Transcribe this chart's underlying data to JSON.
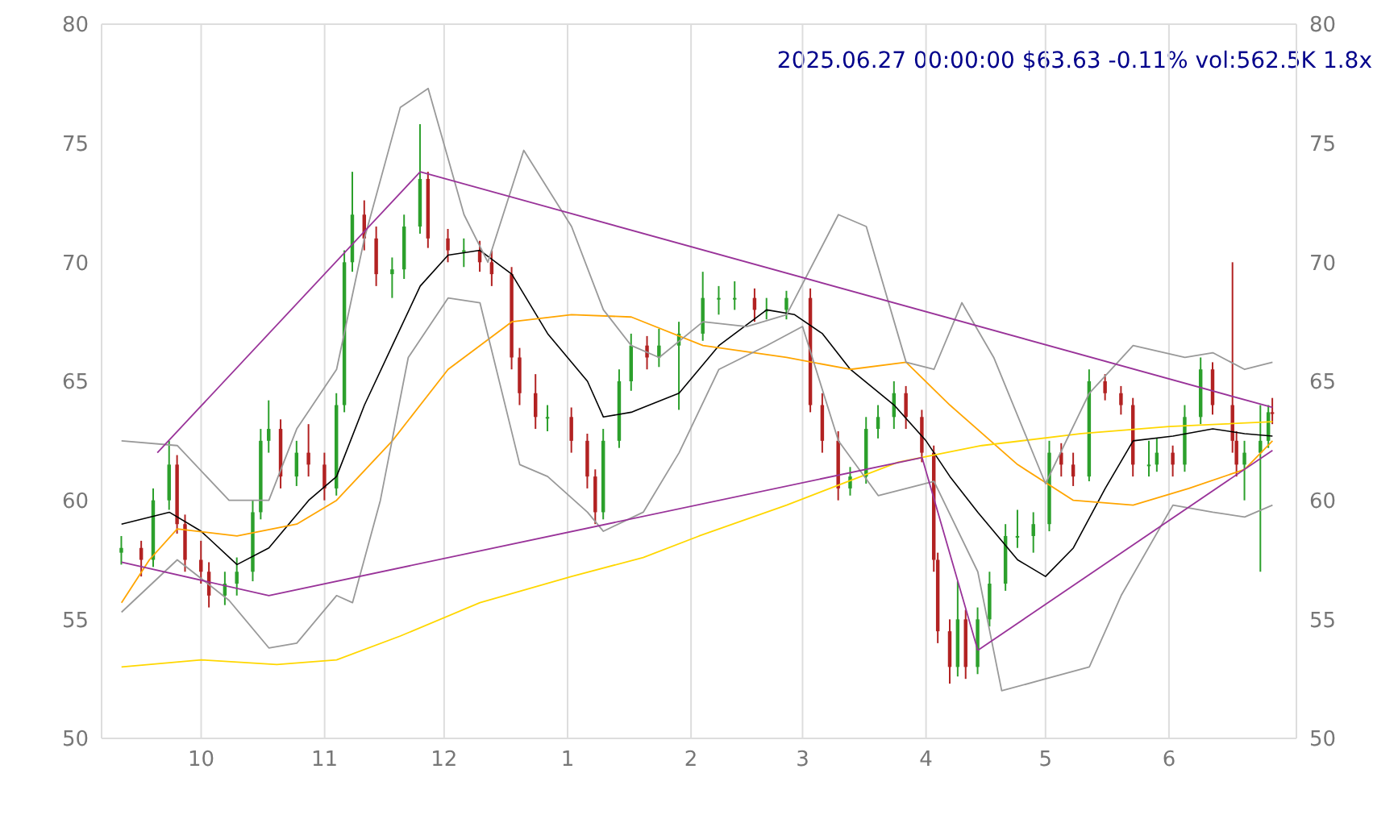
{
  "chart_data": {
    "type": "candlestick",
    "title": "2025.06.27 00:00:00 $63.63 -0.11% vol:562.5K 1.8x",
    "x": [
      "2024-09-11",
      "2024-09-16",
      "2024-09-19",
      "2024-09-23",
      "2024-09-25",
      "2024-09-27",
      "2024-10-01",
      "2024-10-03",
      "2024-10-07",
      "2024-10-10",
      "2024-10-14",
      "2024-10-16",
      "2024-10-18",
      "2024-10-21",
      "2024-10-25",
      "2024-10-28",
      "2024-11-01",
      "2024-11-04",
      "2024-11-06",
      "2024-11-08",
      "2024-11-11",
      "2024-11-14",
      "2024-11-18",
      "2024-11-21",
      "2024-11-25",
      "2024-11-27",
      "2024-12-02",
      "2024-12-06",
      "2024-12-10",
      "2024-12-13",
      "2024-12-18",
      "2024-12-20",
      "2024-12-24",
      "2024-12-27",
      "2025-01-02",
      "2025-01-06",
      "2025-01-08",
      "2025-01-10",
      "2025-01-14",
      "2025-01-17",
      "2025-01-21",
      "2025-01-24",
      "2025-01-29",
      "2025-02-04",
      "2025-02-08",
      "2025-02-12",
      "2025-02-17",
      "2025-02-20",
      "2025-02-25",
      "2025-03-03",
      "2025-03-06",
      "2025-03-10",
      "2025-03-13",
      "2025-03-17",
      "2025-03-20",
      "2025-03-24",
      "2025-03-27",
      "2025-03-31",
      "2025-04-03",
      "2025-04-04",
      "2025-04-07",
      "2025-04-09",
      "2025-04-11",
      "2025-04-14",
      "2025-04-17",
      "2025-04-21",
      "2025-04-24",
      "2025-04-28",
      "2025-05-02",
      "2025-05-05",
      "2025-05-08",
      "2025-05-12",
      "2025-05-16",
      "2025-05-20",
      "2025-05-23",
      "2025-05-27",
      "2025-05-29",
      "2025-06-02",
      "2025-06-05",
      "2025-06-09",
      "2025-06-12",
      "2025-06-17",
      "2025-06-18",
      "2025-06-20",
      "2025-06-24",
      "2025-06-26",
      "2025-06-27"
    ],
    "ohlc": [
      [
        57.8,
        58.5,
        57.3,
        58
      ],
      [
        58,
        58.3,
        56.8,
        57.5
      ],
      [
        57.5,
        60.5,
        57.2,
        60
      ],
      [
        60,
        62.5,
        59.6,
        61.5
      ],
      [
        61.5,
        61.9,
        58.6,
        59
      ],
      [
        59,
        59.4,
        57,
        57.5
      ],
      [
        57.5,
        58.3,
        56.5,
        57
      ],
      [
        57,
        57.4,
        55.5,
        56
      ],
      [
        56,
        57,
        55.6,
        56.5
      ],
      [
        56.5,
        57.6,
        56,
        57
      ],
      [
        57,
        60,
        56.6,
        59.5
      ],
      [
        59.5,
        63,
        59.2,
        62.5
      ],
      [
        62.5,
        64.2,
        62,
        63
      ],
      [
        63,
        63.4,
        60.5,
        61
      ],
      [
        61,
        62.5,
        60.6,
        62
      ],
      [
        62,
        63.2,
        61,
        61.5
      ],
      [
        61.5,
        62,
        60,
        60.5
      ],
      [
        60.5,
        64.5,
        60.2,
        64
      ],
      [
        64,
        70.5,
        63.7,
        70
      ],
      [
        70,
        73.8,
        69.6,
        72
      ],
      [
        72,
        72.6,
        70.5,
        71
      ],
      [
        71,
        71.5,
        69,
        69.5
      ],
      [
        69.5,
        70.2,
        68.5,
        69.7
      ],
      [
        69.7,
        72,
        69.3,
        71.5
      ],
      [
        71.5,
        75.8,
        71.2,
        73.5
      ],
      [
        73.5,
        73.8,
        70.6,
        71
      ],
      [
        71,
        71.4,
        70,
        70.5
      ],
      [
        70.5,
        71,
        69.8,
        70.5
      ],
      [
        70.5,
        70.9,
        69.6,
        70
      ],
      [
        70,
        70.5,
        69,
        69.5
      ],
      [
        69.5,
        69.8,
        65.5,
        66
      ],
      [
        66,
        66.4,
        64,
        64.5
      ],
      [
        64.5,
        65.3,
        63,
        63.5
      ],
      [
        63.5,
        64,
        62.9,
        63.5
      ],
      [
        63.5,
        63.9,
        62,
        62.5
      ],
      [
        62.5,
        62.8,
        60.5,
        61
      ],
      [
        61,
        61.3,
        59,
        59.5
      ],
      [
        59.5,
        63,
        59.2,
        62.5
      ],
      [
        62.5,
        65.5,
        62.2,
        65
      ],
      [
        65,
        67,
        64.6,
        66.5
      ],
      [
        66.5,
        66.9,
        65.5,
        66
      ],
      [
        66,
        67.2,
        65.6,
        66.5
      ],
      [
        66.5,
        67.5,
        63.8,
        67
      ],
      [
        67,
        69.6,
        66.7,
        68.5
      ],
      [
        68.5,
        69,
        67.8,
        68.5
      ],
      [
        68.5,
        69.2,
        68,
        68.5
      ],
      [
        68.5,
        68.9,
        67.5,
        68
      ],
      [
        68,
        68.5,
        67.6,
        68
      ],
      [
        68,
        68.8,
        67.6,
        68.5
      ],
      [
        68.5,
        68.9,
        63.7,
        64
      ],
      [
        64,
        64.5,
        62,
        62.5
      ],
      [
        62.5,
        62.9,
        60,
        60.5
      ],
      [
        60.5,
        61.4,
        60.2,
        61
      ],
      [
        61,
        63.5,
        60.7,
        63
      ],
      [
        63,
        64,
        62.6,
        63.5
      ],
      [
        63.5,
        65,
        63,
        64.5
      ],
      [
        64.5,
        64.8,
        63,
        63.5
      ],
      [
        63.5,
        63.8,
        61.6,
        62
      ],
      [
        62,
        62.3,
        57,
        57.5
      ],
      [
        57.5,
        57.8,
        54,
        54.5
      ],
      [
        54.5,
        55,
        52.3,
        53
      ],
      [
        53,
        56.6,
        52.6,
        55
      ],
      [
        55,
        55.4,
        52.5,
        53
      ],
      [
        53,
        55.5,
        52.7,
        55
      ],
      [
        55,
        57,
        54.7,
        56.5
      ],
      [
        56.5,
        59,
        56.2,
        58.5
      ],
      [
        58.5,
        59.6,
        58,
        58.5
      ],
      [
        58.5,
        59.5,
        57.8,
        59
      ],
      [
        59,
        62.5,
        58.7,
        62
      ],
      [
        62,
        62.4,
        61,
        61.5
      ],
      [
        61.5,
        62,
        60.6,
        61
      ],
      [
        61,
        65.5,
        60.8,
        65
      ],
      [
        65,
        65.3,
        64.2,
        64.5
      ],
      [
        64.5,
        64.8,
        63.6,
        64
      ],
      [
        64,
        64.3,
        61,
        61.5
      ],
      [
        61.5,
        62.5,
        61,
        61.5
      ],
      [
        61.5,
        62.6,
        61.2,
        62
      ],
      [
        62,
        62.3,
        61,
        61.5
      ],
      [
        61.5,
        64,
        61.2,
        63.5
      ],
      [
        63.5,
        66,
        63.2,
        65.5
      ],
      [
        65.5,
        65.8,
        63.6,
        64
      ],
      [
        64,
        70,
        62,
        62.5
      ],
      [
        62.5,
        62.9,
        61,
        61.5
      ],
      [
        61.5,
        62.5,
        60,
        62
      ],
      [
        62,
        64,
        57,
        62.5
      ],
      [
        62.5,
        64,
        62.2,
        63.7
      ],
      [
        63.7,
        64.3,
        63.2,
        63.63
      ]
    ],
    "series": [
      {
        "type": "line",
        "color": "#000000",
        "x": [
          "2024-09-11",
          "2024-09-23",
          "2024-10-01",
          "2024-10-10",
          "2024-10-18",
          "2024-10-28",
          "2024-11-04",
          "2024-11-11",
          "2024-11-18",
          "2024-11-25",
          "2024-12-02",
          "2024-12-10",
          "2024-12-18",
          "2024-12-27",
          "2025-01-06",
          "2025-01-10",
          "2025-01-17",
          "2025-01-29",
          "2025-02-08",
          "2025-02-20",
          "2025-02-27",
          "2025-03-06",
          "2025-03-13",
          "2025-03-24",
          "2025-04-01",
          "2025-04-07",
          "2025-04-14",
          "2025-04-24",
          "2025-05-01",
          "2025-05-08",
          "2025-05-16",
          "2025-05-23",
          "2025-06-02",
          "2025-06-12",
          "2025-06-20",
          "2025-06-27"
        ],
        "values": [
          59,
          59.5,
          58.7,
          57.3,
          58,
          60,
          61,
          64,
          66.5,
          69,
          70.3,
          70.5,
          69.5,
          67,
          65,
          63.5,
          63.7,
          64.5,
          66.5,
          68,
          67.8,
          67,
          65.5,
          64,
          62.5,
          61,
          59.5,
          57.5,
          56.8,
          58,
          60.5,
          62.5,
          62.7,
          63,
          62.8,
          62.7
        ]
      },
      {
        "type": "line",
        "color": "#ffa500",
        "x": [
          "2024-09-11",
          "2024-09-18",
          "2024-09-25",
          "2024-10-10",
          "2024-10-25",
          "2024-11-04",
          "2024-11-18",
          "2024-12-02",
          "2024-12-18",
          "2025-01-02",
          "2025-01-17",
          "2025-02-04",
          "2025-02-25",
          "2025-03-13",
          "2025-03-27",
          "2025-04-07",
          "2025-04-24",
          "2025-05-08",
          "2025-05-23",
          "2025-06-06",
          "2025-06-20",
          "2025-06-27"
        ],
        "values": [
          55.7,
          57.5,
          58.8,
          58.5,
          59,
          60,
          62.5,
          65.5,
          67.5,
          67.8,
          67.7,
          66.5,
          66,
          65.5,
          65.8,
          64,
          61.5,
          60,
          59.8,
          60.5,
          61.3,
          62.5
        ]
      },
      {
        "type": "line",
        "color": "#ffd700",
        "x": [
          "2024-09-11",
          "2024-10-01",
          "2024-10-20",
          "2024-11-04",
          "2024-11-20",
          "2024-12-10",
          "2025-01-02",
          "2025-01-20",
          "2025-02-03",
          "2025-02-25",
          "2025-03-25",
          "2025-04-15",
          "2025-05-10",
          "2025-06-01",
          "2025-06-27"
        ],
        "values": [
          53,
          53.3,
          53.1,
          53.3,
          54.3,
          55.7,
          56.8,
          57.6,
          58.5,
          59.8,
          61.6,
          62.3,
          62.8,
          63.1,
          63.3
        ]
      },
      {
        "type": "line",
        "color": "#999999",
        "x": [
          "2024-09-11",
          "2024-09-25",
          "2024-10-08",
          "2024-10-18",
          "2024-10-25",
          "2024-11-04",
          "2024-11-11",
          "2024-11-20",
          "2024-11-27",
          "2024-12-06",
          "2024-12-12",
          "2024-12-21",
          "2025-01-02",
          "2025-01-10",
          "2025-01-17",
          "2025-01-24",
          "2025-02-04",
          "2025-02-15",
          "2025-02-25",
          "2025-03-10",
          "2025-03-17",
          "2025-03-27",
          "2025-04-03",
          "2025-04-10",
          "2025-04-18",
          "2025-05-01",
          "2025-05-12",
          "2025-05-23",
          "2025-06-05",
          "2025-06-12",
          "2025-06-20",
          "2025-06-27"
        ],
        "values": [
          62.5,
          62.3,
          60,
          60,
          63,
          65.5,
          71,
          76.5,
          77.3,
          72,
          70,
          74.7,
          71.5,
          68,
          66.5,
          66,
          67.5,
          67.3,
          67.8,
          72,
          71.5,
          65.8,
          65.5,
          68.3,
          66,
          60.7,
          64.5,
          66.5,
          66,
          66.2,
          65.5,
          65.8
        ]
      },
      {
        "type": "line",
        "color": "#999999",
        "x": [
          "2024-09-11",
          "2024-09-25",
          "2024-10-08",
          "2024-10-18",
          "2024-10-25",
          "2024-11-04",
          "2024-11-08",
          "2024-11-15",
          "2024-11-22",
          "2024-12-02",
          "2024-12-10",
          "2024-12-20",
          "2024-12-27",
          "2025-01-06",
          "2025-01-10",
          "2025-01-20",
          "2025-01-29",
          "2025-02-08",
          "2025-02-20",
          "2025-03-01",
          "2025-03-10",
          "2025-03-20",
          "2025-04-03",
          "2025-04-14",
          "2025-04-20",
          "2025-05-01",
          "2025-05-12",
          "2025-05-20",
          "2025-06-02",
          "2025-06-12",
          "2025-06-20",
          "2025-06-27"
        ],
        "values": [
          55.3,
          57.5,
          55.8,
          53.8,
          54,
          56,
          55.7,
          60,
          66,
          68.5,
          68.3,
          61.5,
          61,
          59.5,
          58.7,
          59.5,
          62,
          65.5,
          66.5,
          67.3,
          62.5,
          60.2,
          60.8,
          57,
          52,
          52.5,
          53,
          56,
          59.8,
          59.5,
          59.3,
          59.8
        ]
      },
      {
        "type": "line",
        "color": "#993399",
        "x": [
          "2024-09-20",
          "2024-11-25"
        ],
        "values": [
          62,
          73.8
        ]
      },
      {
        "type": "line",
        "color": "#993399",
        "x": [
          "2024-11-25",
          "2025-06-27"
        ],
        "values": [
          73.8,
          63.9
        ]
      },
      {
        "type": "line",
        "color": "#993399",
        "x": [
          "2024-09-11",
          "2024-10-18",
          "2025-03-31",
          "2025-04-14"
        ],
        "values": [
          57.4,
          56,
          61.8,
          53.7
        ]
      },
      {
        "type": "line",
        "color": "#993399",
        "x": [
          "2025-04-14",
          "2025-06-27"
        ],
        "values": [
          53.7,
          62.1
        ]
      }
    ],
    "xlim": [
      "2024-09-06",
      "2025-07-03"
    ],
    "xticks": [
      {
        "value": "2024-10-01",
        "label": "10"
      },
      {
        "value": "2024-11-01",
        "label": "11"
      },
      {
        "value": "2024-12-01",
        "label": "12"
      },
      {
        "value": "2025-01-01",
        "label": "1"
      },
      {
        "value": "2025-02-01",
        "label": "2"
      },
      {
        "value": "2025-03-01",
        "label": "3"
      },
      {
        "value": "2025-04-01",
        "label": "4"
      },
      {
        "value": "2025-05-01",
        "label": "5"
      },
      {
        "value": "2025-06-01",
        "label": "6"
      }
    ],
    "ylim": [
      50,
      80
    ],
    "yticks": [
      50,
      55,
      60,
      65,
      70,
      75,
      80
    ],
    "y2lim": [
      50,
      80
    ],
    "y2ticks": [
      50,
      55,
      60,
      65,
      70,
      75,
      80
    ],
    "grid": true
  }
}
